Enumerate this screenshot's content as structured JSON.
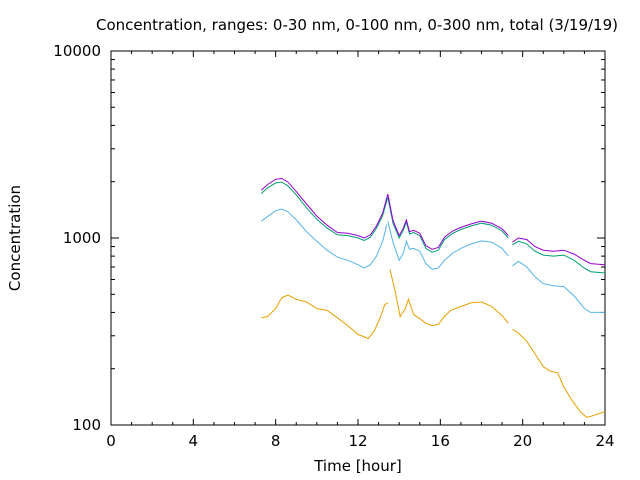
{
  "chart_data": {
    "type": "line",
    "title": "Concentration, ranges: 0-30 nm, 0-100 nm, 0-300 nm, total (3/19/19)",
    "xlabel": "Time [hour]",
    "ylabel": "Concentration",
    "xlim": [
      0,
      24
    ],
    "ylim": [
      100,
      10000
    ],
    "yscale": "log",
    "xticks": [
      "0",
      "4",
      "8",
      "12",
      "16",
      "20",
      "24"
    ],
    "yticks": [
      "100",
      "1000",
      "10000"
    ],
    "grid": false,
    "legend": "none",
    "series": [
      {
        "color": "#e69f00",
        "segments": [
          [
            [
              7.3,
              375
            ],
            [
              7.6,
              380
            ],
            [
              8.0,
              420
            ],
            [
              8.3,
              480
            ],
            [
              8.6,
              495
            ],
            [
              9.0,
              470
            ],
            [
              9.5,
              455
            ],
            [
              10.0,
              420
            ],
            [
              10.5,
              410
            ],
            [
              11.0,
              375
            ],
            [
              11.5,
              340
            ],
            [
              12.0,
              305
            ],
            [
              12.5,
              290
            ],
            [
              12.8,
              320
            ],
            [
              13.1,
              380
            ],
            [
              13.3,
              440
            ],
            [
              13.45,
              450
            ]
          ],
          [
            [
              13.55,
              680
            ],
            [
              13.8,
              520
            ],
            [
              14.05,
              380
            ],
            [
              14.3,
              420
            ],
            [
              14.45,
              470
            ],
            [
              14.7,
              390
            ],
            [
              15.0,
              370
            ],
            [
              15.3,
              350
            ],
            [
              15.6,
              340
            ],
            [
              15.9,
              345
            ],
            [
              16.2,
              380
            ],
            [
              16.5,
              410
            ],
            [
              17.0,
              430
            ],
            [
              17.5,
              450
            ],
            [
              18.0,
              455
            ],
            [
              18.5,
              430
            ],
            [
              19.0,
              385
            ],
            [
              19.3,
              350
            ]
          ],
          [
            [
              19.5,
              325
            ],
            [
              19.8,
              310
            ],
            [
              20.2,
              280
            ],
            [
              20.6,
              240
            ],
            [
              21.0,
              205
            ],
            [
              21.3,
              195
            ],
            [
              21.7,
              190
            ],
            [
              22.0,
              160
            ],
            [
              22.4,
              135
            ],
            [
              22.8,
              118
            ],
            [
              23.1,
              110
            ],
            [
              23.4,
              112
            ],
            [
              24.0,
              118
            ]
          ]
        ]
      },
      {
        "color": "#56b4e9",
        "segments": [
          [
            [
              7.3,
              1230
            ],
            [
              7.6,
              1300
            ],
            [
              8.0,
              1400
            ],
            [
              8.3,
              1430
            ],
            [
              8.6,
              1380
            ],
            [
              9.0,
              1250
            ],
            [
              9.5,
              1080
            ],
            [
              10.0,
              960
            ],
            [
              10.5,
              860
            ],
            [
              11.0,
              790
            ],
            [
              11.5,
              760
            ],
            [
              12.0,
              720
            ],
            [
              12.3,
              690
            ],
            [
              12.6,
              720
            ],
            [
              12.9,
              800
            ],
            [
              13.2,
              960
            ],
            [
              13.4,
              1180
            ]
          ],
          [
            [
              13.45,
              1230
            ],
            [
              13.7,
              950
            ],
            [
              14.0,
              760
            ],
            [
              14.2,
              830
            ],
            [
              14.35,
              960
            ],
            [
              14.5,
              870
            ],
            [
              14.7,
              880
            ],
            [
              15.0,
              850
            ],
            [
              15.3,
              730
            ],
            [
              15.6,
              680
            ],
            [
              15.9,
              690
            ],
            [
              16.2,
              760
            ],
            [
              16.6,
              830
            ],
            [
              17.0,
              880
            ],
            [
              17.5,
              930
            ],
            [
              18.0,
              965
            ],
            [
              18.5,
              950
            ],
            [
              19.0,
              880
            ],
            [
              19.3,
              800
            ]
          ],
          [
            [
              19.5,
              710
            ],
            [
              19.8,
              750
            ],
            [
              20.2,
              700
            ],
            [
              20.6,
              620
            ],
            [
              21.0,
              570
            ],
            [
              21.5,
              555
            ],
            [
              22.0,
              550
            ],
            [
              22.5,
              490
            ],
            [
              23.0,
              420
            ],
            [
              23.3,
              400
            ],
            [
              24.0,
              400
            ]
          ]
        ]
      },
      {
        "color": "#009e73",
        "segments": [
          [
            [
              7.3,
              1730
            ],
            [
              7.6,
              1850
            ],
            [
              8.0,
              1970
            ],
            [
              8.3,
              1990
            ],
            [
              8.6,
              1900
            ],
            [
              9.0,
              1700
            ],
            [
              9.5,
              1450
            ],
            [
              10.0,
              1260
            ],
            [
              10.5,
              1130
            ],
            [
              11.0,
              1040
            ],
            [
              11.5,
              1030
            ],
            [
              12.0,
              1000
            ],
            [
              12.3,
              970
            ],
            [
              12.6,
              1010
            ],
            [
              12.9,
              1130
            ],
            [
              13.2,
              1320
            ],
            [
              13.45,
              1650
            ]
          ],
          [
            [
              13.45,
              1650
            ],
            [
              13.7,
              1200
            ],
            [
              14.0,
              1000
            ],
            [
              14.2,
              1100
            ],
            [
              14.35,
              1220
            ],
            [
              14.5,
              1050
            ],
            [
              14.7,
              1070
            ],
            [
              15.0,
              1030
            ],
            [
              15.3,
              880
            ],
            [
              15.6,
              840
            ],
            [
              15.9,
              860
            ],
            [
              16.2,
              980
            ],
            [
              16.6,
              1060
            ],
            [
              17.0,
              1110
            ],
            [
              17.5,
              1160
            ],
            [
              18.0,
              1200
            ],
            [
              18.5,
              1170
            ],
            [
              19.0,
              1090
            ],
            [
              19.3,
              1000
            ]
          ],
          [
            [
              19.5,
              920
            ],
            [
              19.8,
              960
            ],
            [
              20.2,
              930
            ],
            [
              20.6,
              850
            ],
            [
              21.0,
              810
            ],
            [
              21.5,
              800
            ],
            [
              22.0,
              810
            ],
            [
              22.5,
              760
            ],
            [
              23.0,
              690
            ],
            [
              23.3,
              660
            ],
            [
              24.0,
              650
            ]
          ]
        ]
      },
      {
        "color": "#9400d3",
        "segments": [
          [
            [
              7.3,
              1800
            ],
            [
              7.6,
              1930
            ],
            [
              8.0,
              2060
            ],
            [
              8.3,
              2080
            ],
            [
              8.6,
              1990
            ],
            [
              9.0,
              1770
            ],
            [
              9.5,
              1520
            ],
            [
              10.0,
              1310
            ],
            [
              10.5,
              1170
            ],
            [
              11.0,
              1070
            ],
            [
              11.5,
              1060
            ],
            [
              12.0,
              1030
            ],
            [
              12.3,
              1000
            ],
            [
              12.6,
              1040
            ],
            [
              12.9,
              1160
            ],
            [
              13.2,
              1360
            ],
            [
              13.45,
              1720
            ]
          ],
          [
            [
              13.45,
              1720
            ],
            [
              13.7,
              1240
            ],
            [
              14.0,
              1030
            ],
            [
              14.2,
              1130
            ],
            [
              14.35,
              1250
            ],
            [
              14.5,
              1080
            ],
            [
              14.7,
              1100
            ],
            [
              15.0,
              1060
            ],
            [
              15.3,
              910
            ],
            [
              15.6,
              870
            ],
            [
              15.9,
              890
            ],
            [
              16.2,
              1010
            ],
            [
              16.6,
              1090
            ],
            [
              17.0,
              1140
            ],
            [
              17.5,
              1190
            ],
            [
              18.0,
              1230
            ],
            [
              18.5,
              1200
            ],
            [
              19.0,
              1120
            ],
            [
              19.3,
              1030
            ]
          ],
          [
            [
              19.5,
              950
            ],
            [
              19.8,
              1000
            ],
            [
              20.2,
              980
            ],
            [
              20.6,
              900
            ],
            [
              21.0,
              860
            ],
            [
              21.5,
              850
            ],
            [
              22.0,
              860
            ],
            [
              22.5,
              820
            ],
            [
              23.0,
              760
            ],
            [
              23.3,
              730
            ],
            [
              24.0,
              720
            ]
          ]
        ]
      }
    ]
  }
}
